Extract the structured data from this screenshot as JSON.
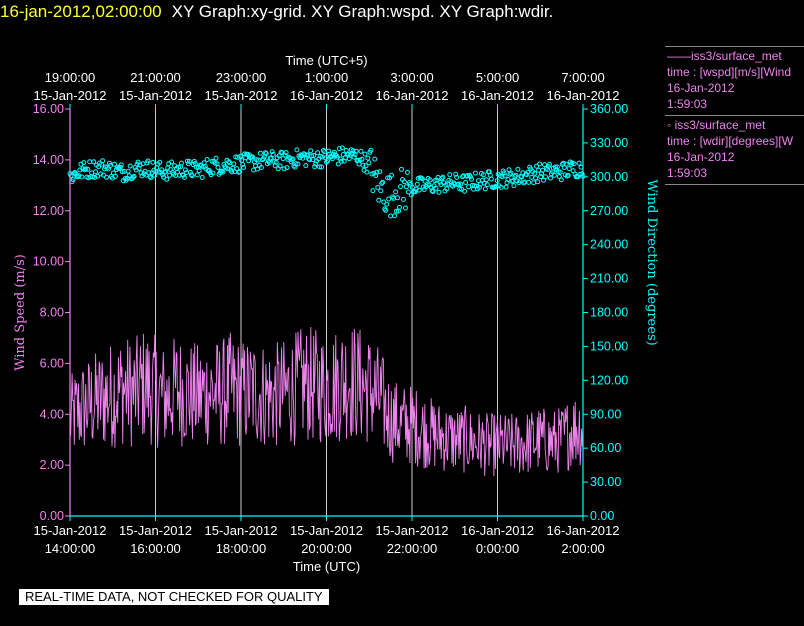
{
  "header": {
    "date": "16-jan-2012,02:00:00",
    "graphs": "XY Graph:xy-grid.  XY Graph:wspd.  XY Graph:wdir."
  },
  "notice": "REAL-TIME DATA, NOT CHECKED FOR QUALITY",
  "legend": [
    {
      "name": "——iss3/surface_met",
      "var": "time : [wspd][m/s][Wind",
      "date": "16-Jan-2012",
      "time": "1:59:03",
      "color": "#ee82ee"
    },
    {
      "name": "◦  iss3/surface_met",
      "var": "time : [wdir][degrees][W",
      "date": "16-Jan-2012",
      "time": "1:59:03",
      "color": "#ee82ee"
    }
  ],
  "chart_data": {
    "type": "line",
    "top_axis_title": "Time (UTC+5)",
    "bottom_axis_title": "Time (UTC)",
    "ylabel_left": "Wind Speed (m/s)",
    "ylabel_right": "Wind Direction (degrees)",
    "ylim_left": [
      0,
      16
    ],
    "ylim_right": [
      0,
      360
    ],
    "x_hours_range": [
      14,
      26
    ],
    "left_ticks": [
      "0.00",
      "2.00",
      "4.00",
      "6.00",
      "8.00",
      "10.00",
      "12.00",
      "14.00",
      "16.00"
    ],
    "right_ticks": [
      "0.00",
      "30.00",
      "60.00",
      "90.00",
      "120.00",
      "150.00",
      "180.00",
      "210.00",
      "240.00",
      "270.00",
      "300.00",
      "330.00",
      "360.00"
    ],
    "bottom_ticks": [
      {
        "date": "15-Jan-2012",
        "time": "14:00:00"
      },
      {
        "date": "15-Jan-2012",
        "time": "16:00:00"
      },
      {
        "date": "15-Jan-2012",
        "time": "18:00:00"
      },
      {
        "date": "15-Jan-2012",
        "time": "20:00:00"
      },
      {
        "date": "15-Jan-2012",
        "time": "22:00:00"
      },
      {
        "date": "16-Jan-2012",
        "time": "0:00:00"
      },
      {
        "date": "16-Jan-2012",
        "time": "2:00:00"
      }
    ],
    "top_ticks": [
      {
        "time": "19:00:00",
        "date": "15-Jan-2012"
      },
      {
        "time": "21:00:00",
        "date": "15-Jan-2012"
      },
      {
        "time": "23:00:00",
        "date": "15-Jan-2012"
      },
      {
        "time": "1:00:00",
        "date": "16-Jan-2012"
      },
      {
        "time": "3:00:00",
        "date": "16-Jan-2012"
      },
      {
        "time": "5:00:00",
        "date": "16-Jan-2012"
      },
      {
        "time": "7:00:00",
        "date": "16-Jan-2012"
      }
    ],
    "grid": "vertical",
    "colors": {
      "wspd": "#ee82ee",
      "wdir": "#00ffff",
      "axes_left": "#ee82ee",
      "axes_right": "#00ffff"
    },
    "series": [
      {
        "name": "iss3/surface_met wspd",
        "style": "line",
        "x_hours": [
          14.0,
          14.25,
          14.5,
          14.75,
          15.0,
          15.25,
          15.5,
          15.75,
          16.0,
          16.25,
          16.5,
          16.75,
          17.0,
          17.25,
          17.5,
          17.75,
          18.0,
          18.25,
          18.5,
          18.75,
          19.0,
          19.25,
          19.5,
          19.75,
          20.0,
          20.25,
          20.5,
          20.75,
          21.0,
          21.25,
          21.5,
          21.75,
          22.0,
          22.25,
          22.5,
          22.75,
          23.0,
          23.25,
          23.5,
          23.75,
          24.0,
          24.25,
          24.5,
          24.75,
          25.0,
          25.25,
          25.5,
          25.75,
          26.0
        ],
        "values": [
          3.8,
          4.2,
          4.4,
          4.6,
          4.8,
          5.0,
          4.8,
          5.2,
          4.9,
          4.6,
          5.0,
          4.8,
          4.7,
          4.9,
          4.8,
          5.0,
          4.8,
          4.9,
          4.8,
          4.7,
          4.8,
          5.0,
          5.2,
          5.1,
          5.0,
          5.2,
          5.4,
          5.2,
          5.0,
          4.6,
          3.8,
          3.6,
          3.6,
          3.4,
          3.2,
          3.1,
          3.0,
          3.0,
          2.9,
          2.8,
          2.8,
          2.8,
          2.8,
          2.9,
          3.0,
          2.9,
          3.0,
          3.4,
          3.5
        ]
      },
      {
        "name": "iss3/surface_met wdir",
        "style": "scatter",
        "x_hours": [
          14.0,
          14.25,
          14.5,
          14.75,
          15.0,
          15.25,
          15.5,
          15.75,
          16.0,
          16.25,
          16.5,
          16.75,
          17.0,
          17.25,
          17.5,
          17.75,
          18.0,
          18.25,
          18.5,
          18.75,
          19.0,
          19.25,
          19.5,
          19.75,
          20.0,
          20.25,
          20.5,
          20.75,
          21.0,
          21.25,
          21.5,
          21.75,
          22.0,
          22.25,
          22.5,
          22.75,
          23.0,
          23.25,
          23.5,
          23.75,
          24.0,
          24.25,
          24.5,
          24.75,
          25.0,
          25.25,
          25.5,
          25.75,
          26.0
        ],
        "values": [
          300,
          305,
          307,
          308,
          306,
          304,
          307,
          308,
          306,
          305,
          306,
          307,
          306,
          309,
          310,
          311,
          312,
          313,
          314,
          315,
          314,
          316,
          317,
          316,
          317,
          318,
          319,
          318,
          310,
          290,
          284,
          288,
          291,
          292,
          293,
          294,
          295,
          294,
          296,
          297,
          298,
          299,
          300,
          302,
          304,
          304,
          305,
          307,
          308
        ]
      }
    ]
  }
}
